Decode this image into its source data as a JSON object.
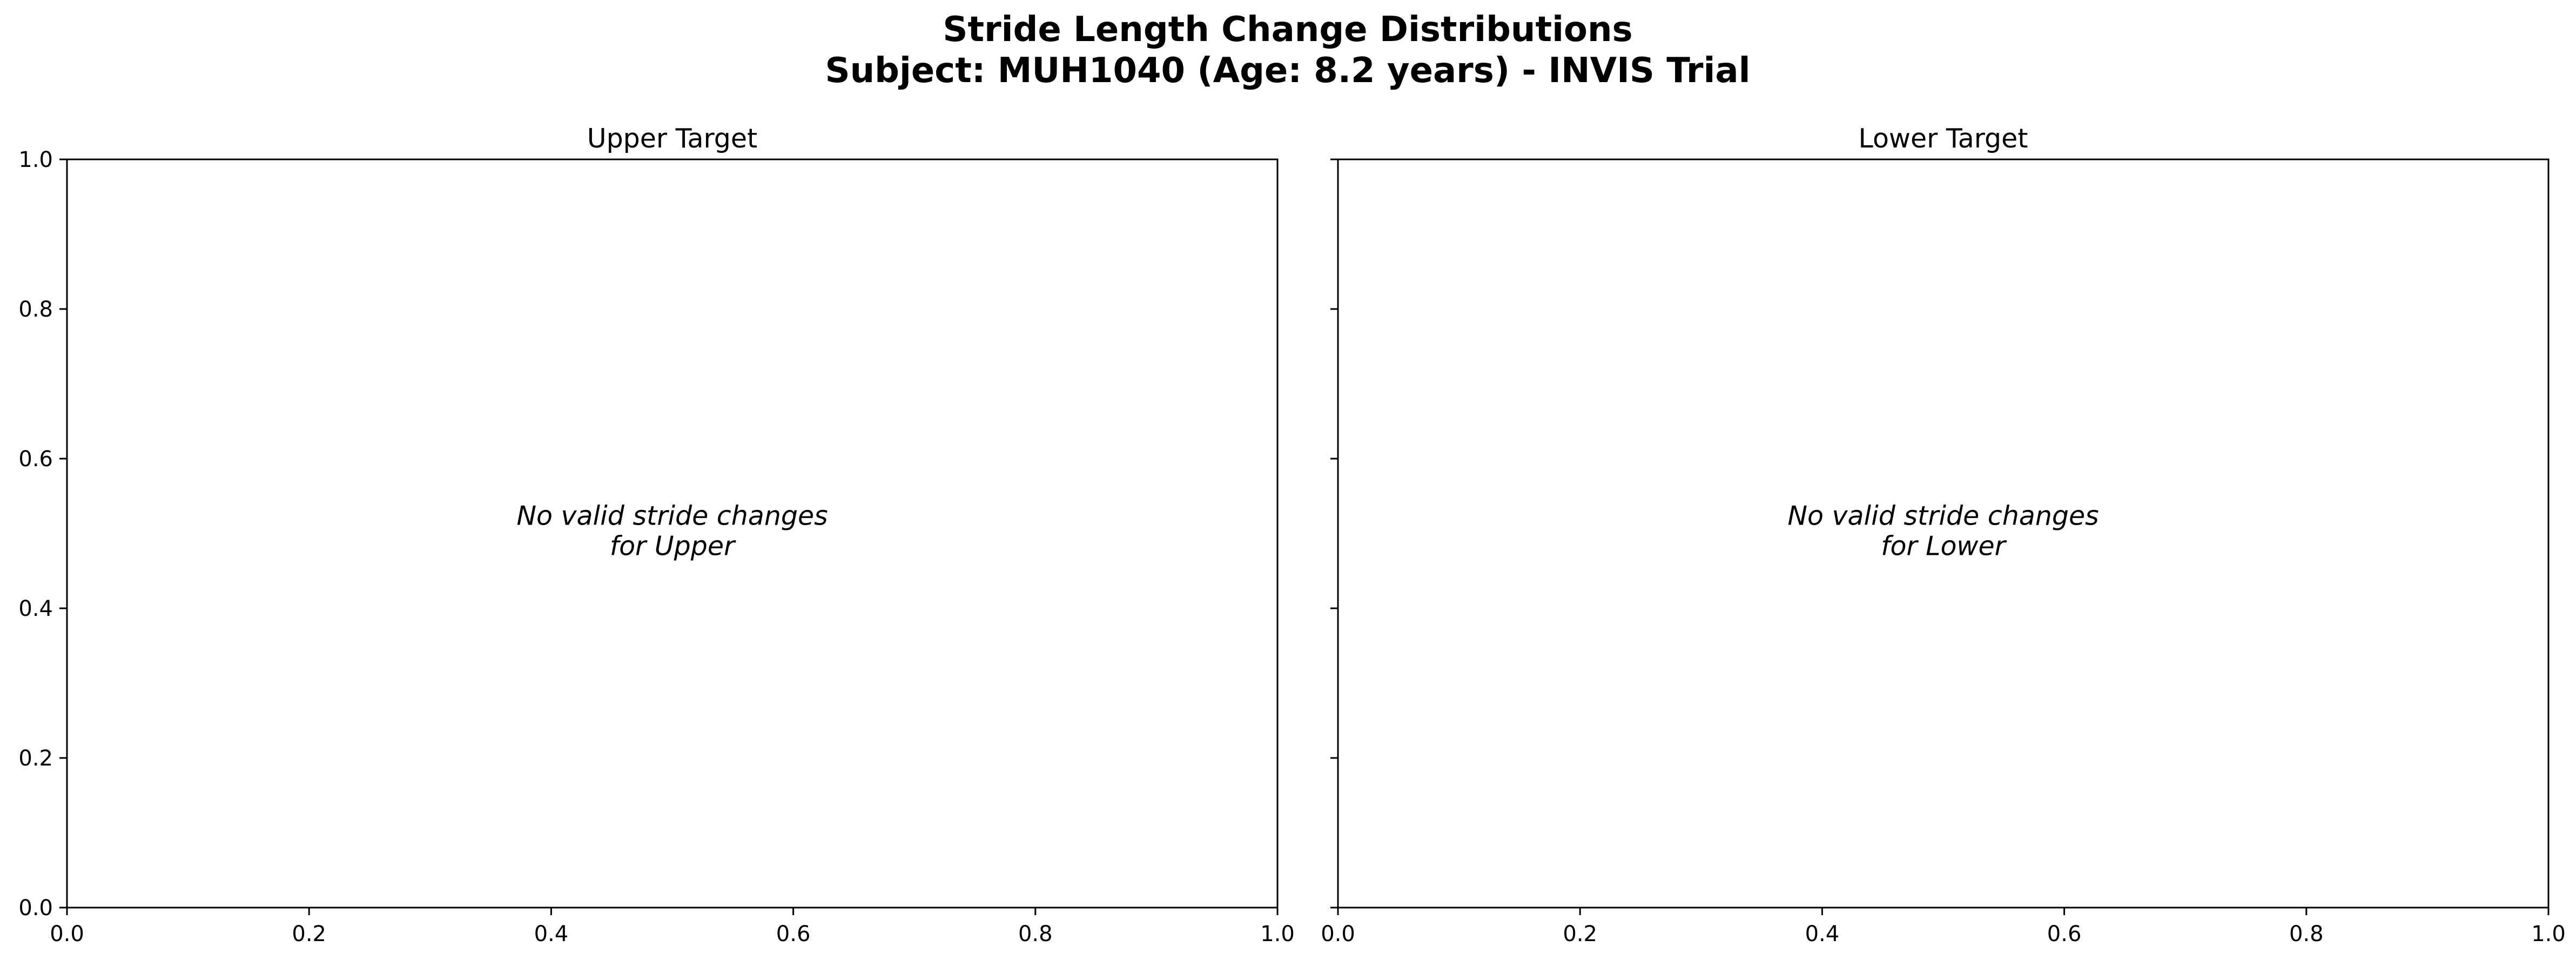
{
  "figure": {
    "title_line1": "Stride Length Change Distributions",
    "title_line2": "Subject: MUH1040 (Age: 8.2 years) - INVIS Trial"
  },
  "chart_data": [
    {
      "type": "bar",
      "title": "Upper Target",
      "message_line1": "No valid stride changes",
      "message_line2": "for Upper",
      "series": [],
      "xlim": [
        0.0,
        1.0
      ],
      "ylim": [
        0.0,
        1.0
      ],
      "xticks": [
        "0.0",
        "0.2",
        "0.4",
        "0.6",
        "0.8",
        "1.0"
      ],
      "yticks": [
        "0.0",
        "0.2",
        "0.4",
        "0.6",
        "0.8",
        "1.0"
      ],
      "show_yticklabels": true,
      "grid": false
    },
    {
      "type": "bar",
      "title": "Lower Target",
      "message_line1": "No valid stride changes",
      "message_line2": "for Lower",
      "series": [],
      "xlim": [
        0.0,
        1.0
      ],
      "ylim": [
        0.0,
        1.0
      ],
      "xticks": [
        "0.0",
        "0.2",
        "0.4",
        "0.6",
        "0.8",
        "1.0"
      ],
      "yticks": [
        "0.0",
        "0.2",
        "0.4",
        "0.6",
        "0.8",
        "1.0"
      ],
      "show_yticklabels": false,
      "grid": false
    }
  ]
}
